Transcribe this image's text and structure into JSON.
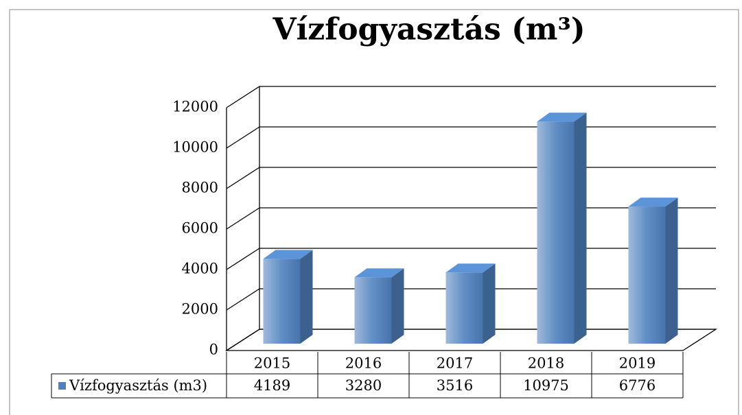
{
  "chart_data": {
    "type": "bar3d",
    "title": "Vízfogyasztás (m³)",
    "categories": [
      "2015",
      "2016",
      "2017",
      "2018",
      "2019"
    ],
    "series": [
      {
        "name": "Vízfogyasztás (m3)",
        "color": "#4f81bd",
        "values": [
          4189,
          3280,
          3516,
          10975,
          6776
        ]
      }
    ],
    "ylim": [
      0,
      12000
    ],
    "yticks": [
      0,
      2000,
      4000,
      6000,
      8000,
      10000,
      12000
    ],
    "grid": true,
    "data_table": true
  }
}
